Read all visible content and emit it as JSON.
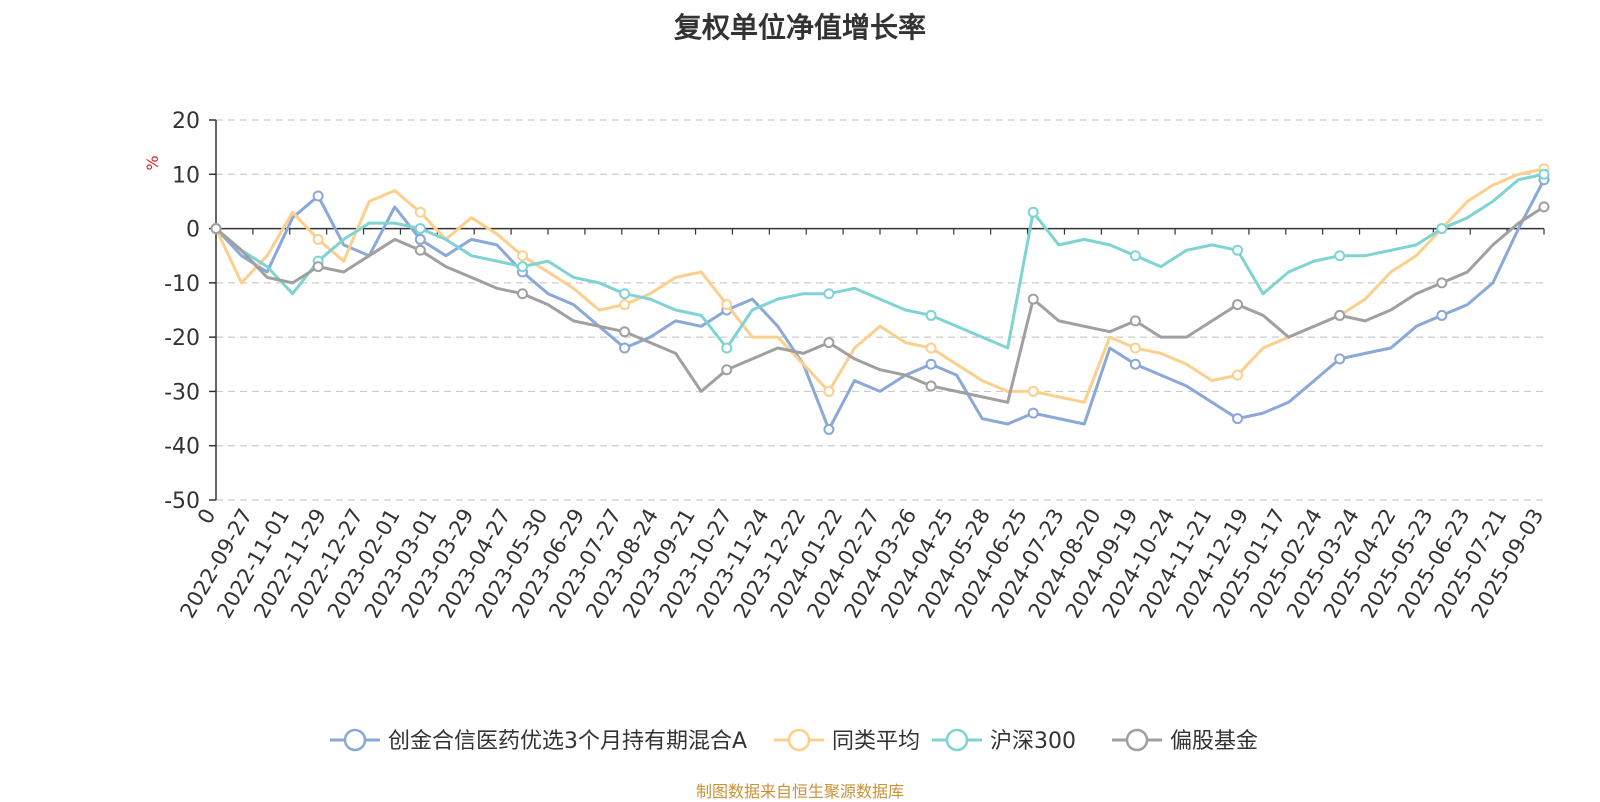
{
  "chart_data": {
    "type": "line",
    "title": "复权单位净值增长率",
    "ylabel": "%",
    "ylim": [
      -50,
      20
    ],
    "yticks": [
      20,
      10,
      0,
      -10,
      -20,
      -30,
      -40,
      -50
    ],
    "grid": true,
    "legend_position": "bottom",
    "x_tick_labels": [
      "0",
      "2022-09-27",
      "2022-11-01",
      "2022-11-29",
      "2022-12-27",
      "2023-02-01",
      "2023-03-01",
      "2023-03-29",
      "2023-04-27",
      "2023-05-30",
      "2023-06-29",
      "2023-07-27",
      "2023-08-24",
      "2023-09-21",
      "2023-10-27",
      "2023-11-24",
      "2023-12-22",
      "2024-01-22",
      "2024-02-27",
      "2024-03-26",
      "2024-04-25",
      "2024-05-28",
      "2024-06-25",
      "2024-07-23",
      "2024-08-20",
      "2024-09-19",
      "2024-10-24",
      "2024-11-21",
      "2024-12-19",
      "2025-01-17",
      "2025-02-24",
      "2025-03-24",
      "2025-04-22",
      "2025-05-23",
      "2025-06-23",
      "2025-07-21",
      "2025-09-03"
    ],
    "series": [
      {
        "name": "创金合信医药优选3个月持有期混合A",
        "color": "#8aa8d8",
        "values": [
          0,
          -5,
          -8,
          2,
          6,
          -3,
          -5,
          4,
          -2,
          -5,
          -2,
          -3,
          -8,
          -12,
          -14,
          -18,
          -22,
          -20,
          -17,
          -18,
          -15,
          -13,
          -18,
          -25,
          -37,
          -28,
          -30,
          -27,
          -25,
          -27,
          -35,
          -36,
          -34,
          -35,
          -36,
          -22,
          -25,
          -27,
          -29,
          -32,
          -35,
          -34,
          -32,
          -28,
          -24,
          -23,
          -22,
          -18,
          -16,
          -14,
          -10,
          0,
          9
        ]
      },
      {
        "name": "同类平均",
        "color": "#fcd08c",
        "values": [
          0,
          -10,
          -5,
          3,
          -2,
          -6,
          5,
          7,
          3,
          -2,
          2,
          -1,
          -5,
          -8,
          -11,
          -15,
          -14,
          -12,
          -9,
          -8,
          -14,
          -20,
          -20,
          -25,
          -30,
          -22,
          -18,
          -21,
          -22,
          -25,
          -28,
          -30,
          -30,
          -31,
          -32,
          -20,
          -22,
          -23,
          -25,
          -28,
          -27,
          -22,
          -20,
          -18,
          -16,
          -13,
          -8,
          -5,
          0,
          5,
          8,
          10,
          11
        ]
      },
      {
        "name": "沪深300",
        "color": "#7fd3d3",
        "values": [
          0,
          -4,
          -7,
          -12,
          -6,
          -2,
          1,
          1,
          0,
          -2,
          -5,
          -6,
          -7,
          -6,
          -9,
          -10,
          -12,
          -13,
          -15,
          -16,
          -22,
          -15,
          -13,
          -12,
          -12,
          -11,
          -13,
          -15,
          -16,
          -18,
          -20,
          -22,
          3,
          -3,
          -2,
          -3,
          -5,
          -7,
          -4,
          -3,
          -4,
          -12,
          -8,
          -6,
          -5,
          -5,
          -4,
          -3,
          0,
          2,
          5,
          9,
          10
        ]
      },
      {
        "name": "偏股基金",
        "color": "#a0a0a0",
        "values": [
          0,
          -4,
          -9,
          -10,
          -7,
          -8,
          -5,
          -2,
          -4,
          -7,
          -9,
          -11,
          -12,
          -14,
          -17,
          -18,
          -19,
          -21,
          -23,
          -30,
          -26,
          -24,
          -22,
          -23,
          -21,
          -24,
          -26,
          -27,
          -29,
          -30,
          -31,
          -32,
          -13,
          -17,
          -18,
          -19,
          -17,
          -20,
          -20,
          -17,
          -14,
          -16,
          -20,
          -18,
          -16,
          -17,
          -15,
          -12,
          -10,
          -8,
          -3,
          1,
          4
        ]
      }
    ]
  },
  "footer": "制图数据来自恒生聚源数据库"
}
